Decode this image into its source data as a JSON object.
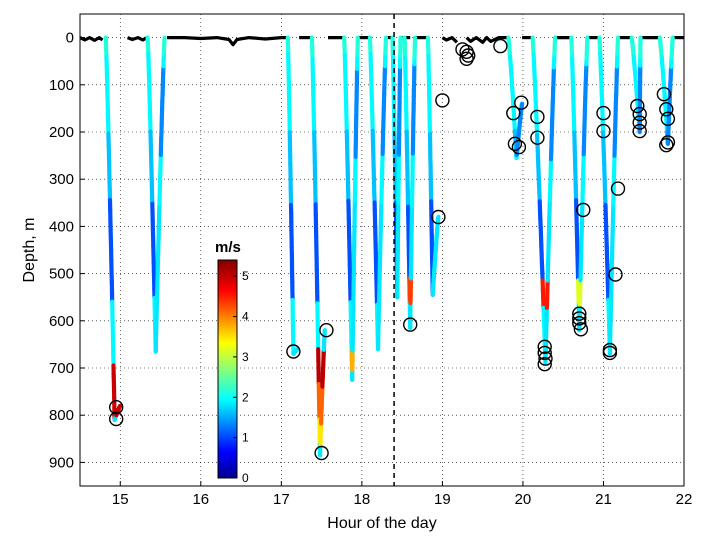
{
  "chart_data": {
    "type": "scatter",
    "xlabel": "Hour of the day",
    "ylabel": "Depth, m",
    "xlim": [
      14.5,
      22
    ],
    "ylim": [
      950,
      -50
    ],
    "y_inverted": true,
    "x_ticks": [
      15,
      16,
      17,
      18,
      19,
      20,
      21,
      22
    ],
    "y_ticks": [
      0,
      100,
      200,
      300,
      400,
      500,
      600,
      700,
      800,
      900
    ],
    "x_tick_labels": [
      "15",
      "16",
      "17",
      "18",
      "19",
      "20",
      "21",
      "22"
    ],
    "y_tick_labels": [
      "0",
      "100",
      "200",
      "300",
      "400",
      "500",
      "600",
      "700",
      "800",
      "900"
    ],
    "grid": true,
    "vertical_dashed_line_x": 18.4,
    "colorbar": {
      "title": "m/s",
      "min": 0,
      "max": 5.4,
      "ticks": [
        0,
        1,
        2,
        3,
        4,
        5
      ],
      "tick_labels": [
        "0",
        "1",
        "2",
        "3",
        "4",
        "5"
      ],
      "colormap": "jet"
    },
    "surface_series": [
      {
        "name": "surface",
        "points": [
          [
            14.5,
            0
          ],
          [
            14.56,
            5
          ],
          [
            14.62,
            0
          ],
          [
            14.68,
            6
          ],
          [
            14.74,
            0
          ],
          [
            14.78,
            5
          ]
        ]
      },
      {
        "name": "surface",
        "points": [
          [
            15.09,
            0
          ],
          [
            15.15,
            4
          ],
          [
            15.22,
            0
          ],
          [
            15.28,
            5
          ],
          [
            15.33,
            0
          ]
        ]
      },
      {
        "name": "surface",
        "points": [
          [
            15.58,
            0
          ],
          [
            15.8,
            0
          ],
          [
            16.0,
            2
          ],
          [
            16.2,
            0
          ],
          [
            16.35,
            4
          ],
          [
            16.4,
            15
          ],
          [
            16.45,
            4
          ],
          [
            16.6,
            0
          ],
          [
            16.8,
            3
          ],
          [
            17.0,
            0
          ],
          [
            17.07,
            0
          ]
        ]
      },
      {
        "name": "surface",
        "points": [
          [
            17.22,
            0
          ],
          [
            17.38,
            0
          ]
        ]
      },
      {
        "name": "surface",
        "points": [
          [
            17.58,
            0
          ],
          [
            17.78,
            0
          ]
        ]
      },
      {
        "name": "surface",
        "points": [
          [
            17.95,
            0
          ],
          [
            18.1,
            0
          ]
        ]
      },
      {
        "name": "surface",
        "points": [
          [
            18.3,
            0
          ],
          [
            18.38,
            0
          ]
        ]
      },
      {
        "name": "surface",
        "points": [
          [
            18.48,
            0
          ],
          [
            18.6,
            0
          ]
        ]
      },
      {
        "name": "surface",
        "points": [
          [
            18.66,
            0
          ],
          [
            18.82,
            0
          ]
        ]
      },
      {
        "name": "surface",
        "points": [
          [
            19.0,
            0
          ],
          [
            19.05,
            5
          ],
          [
            19.12,
            0
          ],
          [
            19.18,
            10
          ]
        ]
      },
      {
        "name": "surface",
        "points": [
          [
            19.3,
            0
          ],
          [
            19.35,
            8
          ],
          [
            19.42,
            0
          ],
          [
            19.5,
            10
          ],
          [
            19.55,
            0
          ],
          [
            19.6,
            8
          ],
          [
            19.7,
            0
          ],
          [
            19.82,
            0
          ]
        ]
      },
      {
        "name": "surface",
        "points": [
          [
            19.99,
            0
          ],
          [
            20.1,
            0
          ]
        ]
      },
      {
        "name": "surface",
        "points": [
          [
            20.4,
            0
          ],
          [
            20.6,
            0
          ]
        ]
      },
      {
        "name": "surface",
        "points": [
          [
            20.8,
            0
          ],
          [
            20.95,
            0
          ]
        ]
      },
      {
        "name": "surface",
        "points": [
          [
            21.18,
            0
          ],
          [
            21.35,
            0
          ]
        ]
      },
      {
        "name": "surface",
        "points": [
          [
            21.46,
            0
          ],
          [
            21.7,
            0
          ]
        ]
      },
      {
        "name": "surface",
        "points": [
          [
            21.86,
            0
          ],
          [
            22.0,
            0
          ]
        ]
      }
    ],
    "dives": [
      {
        "start": 14.82,
        "bottom_time": 14.93,
        "bottom": 810,
        "end": 15.0,
        "end_depth": 780,
        "hot": [
          [
            700,
            800,
            5.0
          ]
        ]
      },
      {
        "start": 15.34,
        "bottom_time": 15.44,
        "bottom": 665,
        "end": 15.55,
        "end_depth": 0,
        "hot": []
      },
      {
        "start": 17.08,
        "bottom_time": 17.15,
        "bottom": 670,
        "end": 17.2,
        "end_depth": 660,
        "hot": []
      },
      {
        "start": 17.38,
        "bottom_time": 17.48,
        "bottom": 885,
        "end": 17.54,
        "end_depth": 620,
        "hot": [
          [
            660,
            740,
            5.1
          ],
          [
            740,
            820,
            4.2
          ],
          [
            820,
            860,
            3.5
          ]
        ]
      },
      {
        "start": 17.78,
        "bottom_time": 17.88,
        "bottom": 725,
        "end": 17.95,
        "end_depth": 0,
        "hot": [
          [
            660,
            700,
            3.8
          ]
        ]
      },
      {
        "start": 18.1,
        "bottom_time": 18.2,
        "bottom": 660,
        "end": 18.3,
        "end_depth": 0,
        "hot": []
      },
      {
        "start": 18.38,
        "bottom_time": 18.44,
        "bottom": 550,
        "end": 18.48,
        "end_depth": 0,
        "hot": []
      },
      {
        "start": 18.53,
        "bottom_time": 18.6,
        "bottom": 615,
        "end": 18.66,
        "end_depth": 0,
        "hot": [
          [
            510,
            560,
            4.4
          ]
        ]
      },
      {
        "start": 18.82,
        "bottom_time": 18.88,
        "bottom": 545,
        "end": 18.95,
        "end_depth": 380,
        "hot": []
      },
      {
        "start": 19.0,
        "bottom_time": 19.0,
        "bottom": 130,
        "end": 19.0,
        "end_depth": 130,
        "hot": []
      },
      {
        "start": 19.82,
        "bottom_time": 19.92,
        "bottom": 255,
        "end": 19.99,
        "end_depth": 140,
        "hot": []
      },
      {
        "start": 20.12,
        "bottom_time": 20.28,
        "bottom": 690,
        "end": 20.4,
        "end_depth": 0,
        "hot": [
          [
            520,
            570,
            4.6
          ]
        ]
      },
      {
        "start": 20.6,
        "bottom_time": 20.7,
        "bottom": 620,
        "end": 20.8,
        "end_depth": 0,
        "hot": [
          [
            520,
            560,
            3.2
          ]
        ]
      },
      {
        "start": 20.95,
        "bottom_time": 21.08,
        "bottom": 670,
        "end": 21.18,
        "end_depth": 0,
        "hot": []
      },
      {
        "start": 21.35,
        "bottom_time": 21.45,
        "bottom": 200,
        "end": 21.46,
        "end_depth": 0,
        "hot": []
      },
      {
        "start": 21.7,
        "bottom_time": 21.8,
        "bottom": 225,
        "end": 21.86,
        "end_depth": 0,
        "hot": []
      }
    ],
    "circles": [
      [
        14.95,
        783
      ],
      [
        14.95,
        808
      ],
      [
        17.15,
        665
      ],
      [
        17.5,
        880
      ],
      [
        17.56,
        620
      ],
      [
        18.6,
        608
      ],
      [
        18.95,
        380
      ],
      [
        19.0,
        133
      ],
      [
        19.25,
        25
      ],
      [
        19.3,
        30
      ],
      [
        19.32,
        38
      ],
      [
        19.3,
        45
      ],
      [
        19.72,
        18
      ],
      [
        19.88,
        160
      ],
      [
        19.9,
        225
      ],
      [
        19.95,
        232
      ],
      [
        19.98,
        138
      ],
      [
        20.18,
        168
      ],
      [
        20.18,
        212
      ],
      [
        20.27,
        655
      ],
      [
        20.27,
        668
      ],
      [
        20.28,
        680
      ],
      [
        20.27,
        692
      ],
      [
        20.75,
        365
      ],
      [
        20.7,
        585
      ],
      [
        20.7,
        595
      ],
      [
        20.7,
        605
      ],
      [
        20.72,
        618
      ],
      [
        21.0,
        160
      ],
      [
        21.0,
        198
      ],
      [
        21.08,
        662
      ],
      [
        21.08,
        668
      ],
      [
        21.15,
        502
      ],
      [
        21.18,
        320
      ],
      [
        21.42,
        145
      ],
      [
        21.45,
        162
      ],
      [
        21.45,
        180
      ],
      [
        21.45,
        198
      ],
      [
        21.75,
        120
      ],
      [
        21.78,
        152
      ],
      [
        21.8,
        172
      ],
      [
        21.8,
        222
      ],
      [
        21.78,
        228
      ]
    ]
  }
}
